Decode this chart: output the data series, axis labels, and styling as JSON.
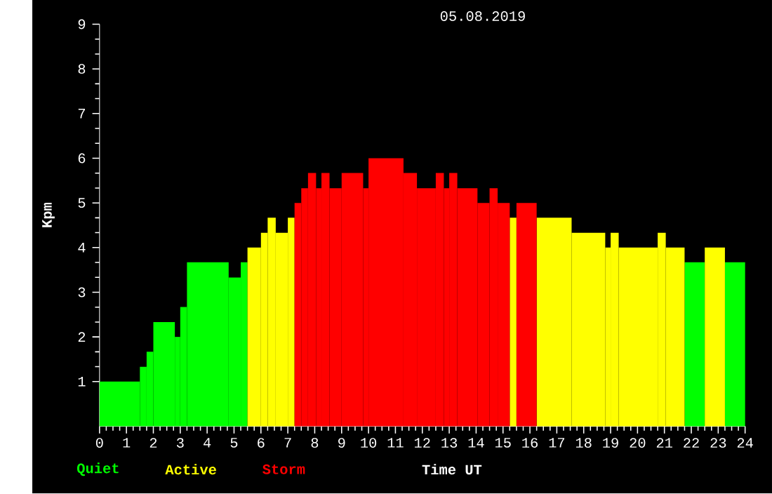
{
  "chart_data": {
    "type": "histogram",
    "title": "05.08.2019",
    "xlabel": "Time UT",
    "ylabel": "Kpm",
    "bins": [
      0,
      1.5,
      1.75,
      2,
      2.8,
      3,
      3.25,
      4.8,
      5.25,
      5.5,
      6,
      6.25,
      6.55,
      7,
      7.25,
      7.5,
      7.75,
      8.05,
      8.25,
      8.55,
      9,
      9.8,
      10,
      11.3,
      11.8,
      12.5,
      12.8,
      13,
      13.3,
      14.05,
      14.5,
      14.8,
      15.25,
      15.5,
      16.25,
      17.55,
      18.8,
      19,
      19.3,
      20.75,
      21.05,
      21.75,
      22.5,
      23.25,
      24
    ],
    "series": [
      {
        "name": "Quiet",
        "color": "#00ff00",
        "values": [
          1.0,
          1.33,
          1.67,
          2.33,
          2.0,
          2.67,
          3.67,
          3.33,
          3.67,
          null,
          null,
          null,
          null,
          null,
          null,
          null,
          null,
          null,
          null,
          null,
          null,
          null,
          null,
          null,
          null,
          null,
          null,
          null,
          null,
          null,
          null,
          null,
          null,
          null,
          null,
          null,
          null,
          null,
          null,
          null,
          null,
          3.67,
          null,
          3.67
        ]
      },
      {
        "name": "Active",
        "color": "#ffff00",
        "values": [
          null,
          null,
          null,
          null,
          null,
          null,
          null,
          null,
          null,
          4.0,
          4.33,
          4.67,
          4.33,
          4.67,
          null,
          null,
          null,
          null,
          null,
          null,
          null,
          null,
          null,
          null,
          null,
          null,
          null,
          null,
          null,
          null,
          null,
          null,
          4.67,
          null,
          4.67,
          4.33,
          4.0,
          4.33,
          4.0,
          4.33,
          4.0,
          null,
          4.0,
          null
        ]
      },
      {
        "name": "Storm",
        "color": "#ff0000",
        "values": [
          null,
          null,
          null,
          null,
          null,
          null,
          null,
          null,
          null,
          null,
          null,
          null,
          null,
          null,
          5.0,
          5.33,
          5.67,
          5.33,
          5.67,
          5.33,
          5.67,
          5.33,
          6.0,
          5.67,
          5.33,
          5.67,
          5.33,
          5.67,
          5.33,
          5.0,
          5.33,
          5.0,
          null,
          5.0,
          null,
          null,
          null,
          null,
          null,
          null,
          null,
          null,
          null,
          null
        ]
      }
    ],
    "xlim": [
      0,
      24
    ],
    "xticks": [
      0,
      1,
      2,
      3,
      4,
      5,
      6,
      7,
      8,
      9,
      10,
      11,
      12,
      13,
      14,
      15,
      16,
      17,
      18,
      19,
      20,
      21,
      22,
      23,
      24
    ],
    "ylim": [
      0,
      9
    ],
    "yticks": [
      1,
      2,
      3,
      4,
      5,
      6,
      7,
      8,
      9
    ],
    "legend": "bottom left"
  }
}
